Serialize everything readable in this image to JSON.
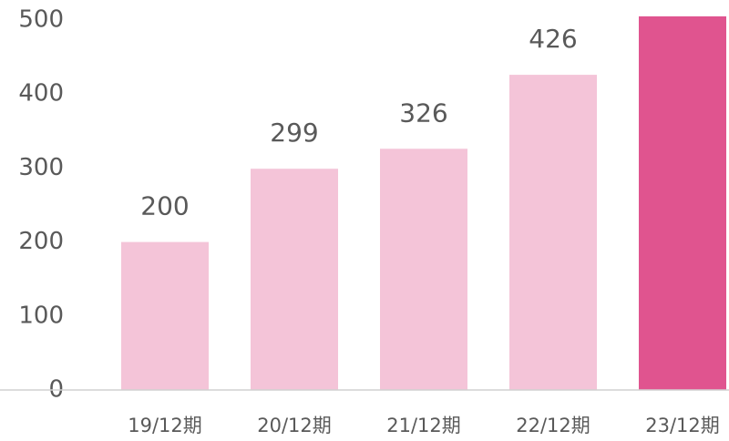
{
  "chart_data": {
    "type": "bar",
    "categories": [
      "19/12期",
      "20/12期",
      "21/12期",
      "22/12期",
      "23/12期"
    ],
    "values": [
      200,
      299,
      326,
      426,
      505
    ],
    "value_labels": [
      "200",
      "299",
      "326",
      "426",
      null
    ],
    "colors": [
      "#f4c4d8",
      "#f4c4d8",
      "#f4c4d8",
      "#f4c4d8",
      "#e0548f"
    ],
    "ylim": [
      0,
      500
    ],
    "yticks": [
      0,
      100,
      200,
      300,
      400,
      500
    ],
    "grid": false
  }
}
